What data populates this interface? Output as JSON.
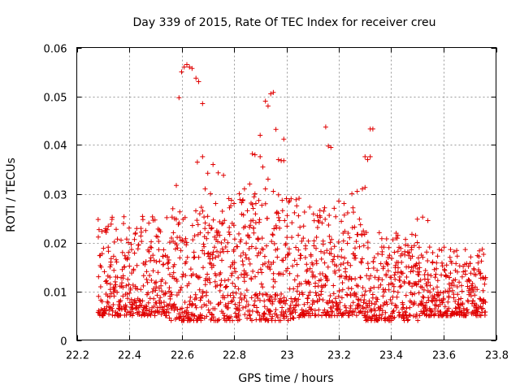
{
  "chart_data": {
    "type": "scatter",
    "title": "Day 339 of 2015, Rate Of TEC Index for receiver creu",
    "xlabel": "GPS time / hours",
    "ylabel": "ROTI / TECUs",
    "xlim": [
      22.2,
      23.8
    ],
    "ylim": [
      0,
      0.06
    ],
    "xticks": [
      "22.2",
      "22.4",
      "22.6",
      "22.8",
      "23",
      "23.2",
      "23.4",
      "23.6",
      "23.8"
    ],
    "yticks": [
      "0",
      "0.01",
      "0.02",
      "0.03",
      "0.04",
      "0.05",
      "0.06"
    ],
    "grid": true,
    "marker": "+",
    "marker_color": "#e00000",
    "x_range_data": [
      22.28,
      23.76
    ],
    "points": [
      [
        22.6,
        0.055
      ],
      [
        22.61,
        0.056
      ],
      [
        22.62,
        0.0565
      ],
      [
        22.63,
        0.056
      ],
      [
        22.64,
        0.0557
      ],
      [
        22.59,
        0.0497
      ],
      [
        22.655,
        0.0537
      ],
      [
        22.665,
        0.053
      ],
      [
        22.68,
        0.0485
      ],
      [
        22.92,
        0.049
      ],
      [
        22.93,
        0.048
      ],
      [
        22.94,
        0.0505
      ],
      [
        22.95,
        0.0508
      ],
      [
        23.15,
        0.0437
      ],
      [
        23.16,
        0.0398
      ],
      [
        23.17,
        0.0395
      ],
      [
        23.32,
        0.0433
      ],
      [
        23.33,
        0.0433
      ],
      [
        22.9,
        0.042
      ],
      [
        22.96,
        0.0432
      ],
      [
        22.99,
        0.0412
      ],
      [
        22.58,
        0.0317
      ],
      [
        22.66,
        0.0365
      ],
      [
        22.68,
        0.0376
      ],
      [
        22.7,
        0.0342
      ],
      [
        22.72,
        0.036
      ],
      [
        22.74,
        0.0343
      ],
      [
        22.76,
        0.0338
      ],
      [
        22.87,
        0.0382
      ],
      [
        22.88,
        0.038
      ],
      [
        22.9,
        0.0376
      ],
      [
        22.91,
        0.0355
      ],
      [
        22.93,
        0.033
      ],
      [
        22.97,
        0.037
      ],
      [
        22.98,
        0.0368
      ],
      [
        22.99,
        0.0368
      ],
      [
        23.3,
        0.0376
      ],
      [
        23.31,
        0.037
      ],
      [
        23.32,
        0.0376
      ],
      [
        23.25,
        0.03
      ],
      [
        23.27,
        0.0305
      ],
      [
        23.29,
        0.031
      ],
      [
        23.3,
        0.0313
      ],
      [
        22.82,
        0.03
      ],
      [
        22.84,
        0.031
      ],
      [
        22.86,
        0.032
      ],
      [
        22.88,
        0.03
      ],
      [
        22.92,
        0.031
      ],
      [
        22.95,
        0.0305
      ],
      [
        22.97,
        0.0298
      ],
      [
        23.0,
        0.029
      ],
      [
        22.69,
        0.031
      ],
      [
        22.71,
        0.03
      ],
      [
        22.73,
        0.028
      ],
      [
        22.78,
        0.029
      ],
      [
        22.8,
        0.028
      ],
      [
        23.2,
        0.0285
      ],
      [
        23.22,
        0.028
      ],
      [
        23.5,
        0.0248
      ],
      [
        23.52,
        0.0252
      ],
      [
        23.54,
        0.0245
      ]
    ],
    "bands": [
      {
        "x0": 22.28,
        "x1": 22.55,
        "lo": 0.005,
        "hi": 0.025
      },
      {
        "x0": 22.55,
        "x1": 22.75,
        "lo": 0.004,
        "hi": 0.027
      },
      {
        "x0": 22.75,
        "x1": 23.05,
        "lo": 0.004,
        "hi": 0.029
      },
      {
        "x0": 23.05,
        "x1": 23.3,
        "lo": 0.005,
        "hi": 0.027
      },
      {
        "x0": 23.3,
        "x1": 23.5,
        "lo": 0.004,
        "hi": 0.022
      },
      {
        "x0": 23.5,
        "x1": 23.76,
        "lo": 0.005,
        "hi": 0.019
      }
    ]
  }
}
